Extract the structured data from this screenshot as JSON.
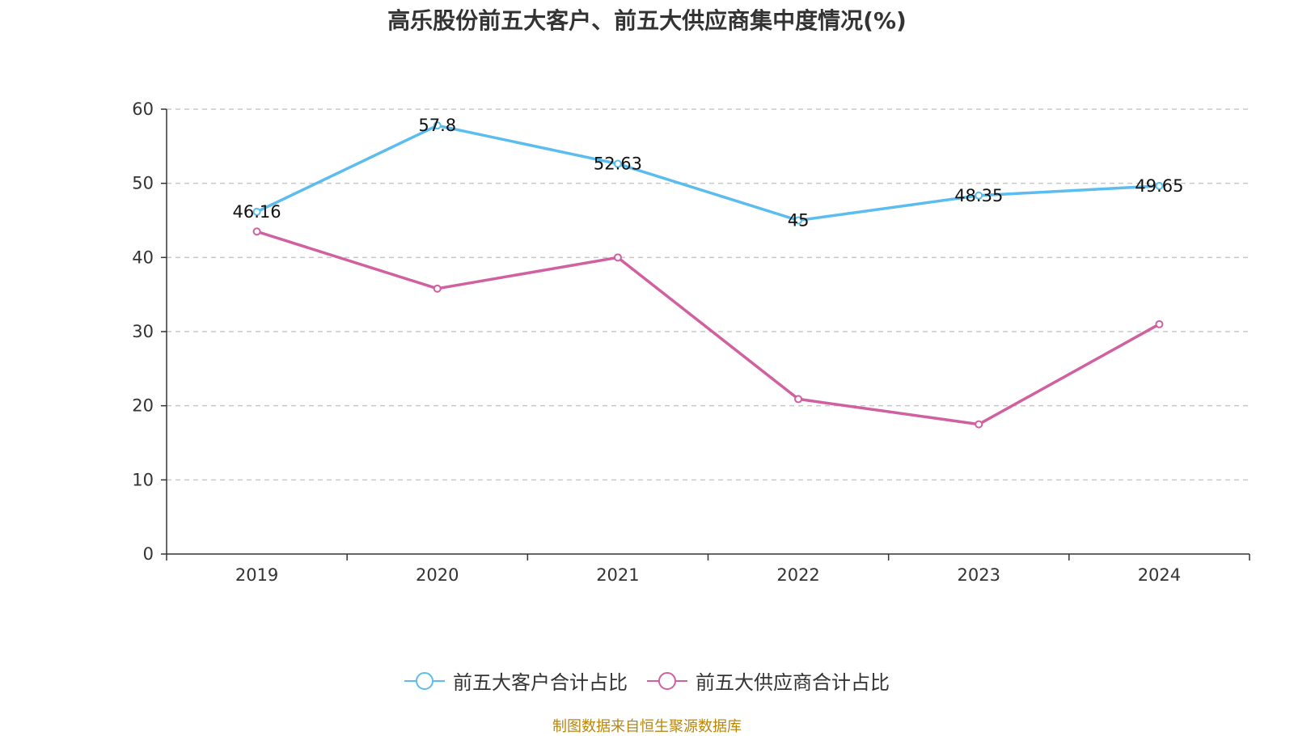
{
  "title": "高乐股份前五大客户、前五大供应商集中度情况(%)",
  "source": "制图数据来自恒生聚源数据库",
  "chart_data": {
    "type": "line",
    "title": "高乐股份前五大客户、前五大供应商集中度情况(%)",
    "categories": [
      "2019",
      "2020",
      "2021",
      "2022",
      "2023",
      "2024"
    ],
    "ylim": [
      0,
      60
    ],
    "yticks": [
      0,
      10,
      20,
      30,
      40,
      50,
      60
    ],
    "grid": true,
    "legend_position": "bottom",
    "series": [
      {
        "name": "前五大客户合计占比",
        "color": "#5bbcef",
        "values": [
          46.16,
          57.8,
          52.63,
          45,
          48.35,
          49.65
        ],
        "labels": [
          "46.16",
          "57.8",
          "52.63",
          "45",
          "48.35",
          "49.65"
        ]
      },
      {
        "name": "前五大供应商合计占比",
        "color": "#d0609f",
        "values": [
          43.5,
          35.8,
          40.0,
          20.9,
          17.5,
          31.0
        ]
      }
    ]
  }
}
